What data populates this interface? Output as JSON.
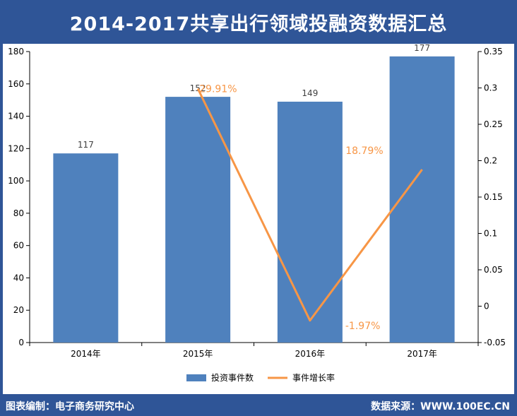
{
  "header": {
    "title": "2014-2017共享出行领域投融资数据汇总"
  },
  "footer": {
    "left": "图表编制：电子商务研究中心",
    "right": "数据来源：WWW.100EC.CN"
  },
  "colors": {
    "frame": "#2f5597",
    "bar": "#4f81bd",
    "line": "#f79646",
    "axis": "#000000"
  },
  "chart_data": {
    "type": "bar",
    "categories": [
      "2014年",
      "2015年",
      "2016年",
      "2017年"
    ],
    "series": [
      {
        "name": "投资事件数",
        "type": "bar",
        "axis": "left",
        "values": [
          117,
          152,
          149,
          177
        ],
        "labels": [
          "117",
          "152",
          "149",
          "177"
        ]
      },
      {
        "name": "事件增长率",
        "type": "line",
        "axis": "right",
        "values": [
          null,
          0.2991,
          -0.0197,
          0.1879
        ],
        "labels": [
          null,
          "29.91%",
          "-1.97%",
          "18.79%"
        ]
      }
    ],
    "y_left": {
      "min": 0,
      "max": 180,
      "ticks": [
        "0",
        "20",
        "40",
        "60",
        "80",
        "100",
        "120",
        "140",
        "160",
        "180"
      ]
    },
    "y_right": {
      "min": -0.05,
      "max": 0.35,
      "ticks": [
        "-0.05",
        "0",
        "0.05",
        "0.1",
        "0.15",
        "0.2",
        "0.25",
        "0.3",
        "0.35"
      ]
    },
    "legend": {
      "position": "bottom"
    }
  }
}
